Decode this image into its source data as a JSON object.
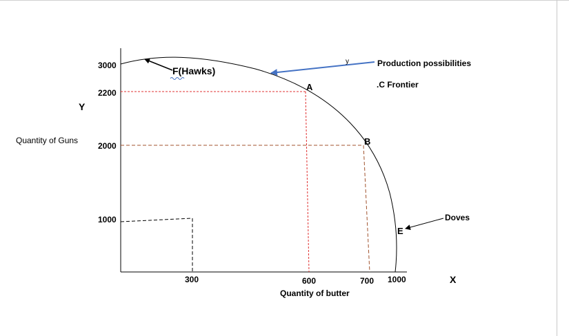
{
  "diagram": {
    "y_axis_letter": "Y",
    "y_axis_label": "Quantity of Guns",
    "x_axis_letter": "X",
    "x_axis_label": "Quantity of butter",
    "y_ticks": [
      "3000",
      "2200",
      "2000",
      "1000"
    ],
    "x_ticks": [
      "300",
      "600",
      "700",
      "1000"
    ],
    "points": {
      "F": "F(Hawks)",
      "A": "A",
      "B": "B",
      "E": "E"
    },
    "annotations": {
      "ppf_line1": "Production possibilities",
      "ppf_line2": ".C Frontier",
      "doves": "Doves",
      "small_y": "y"
    },
    "colors": {
      "curve": "#000000",
      "red_dash": "#e03030",
      "brown_dash": "#a0522d",
      "blue_arrow": "#4472c4",
      "border": "#c8c8c8"
    }
  }
}
